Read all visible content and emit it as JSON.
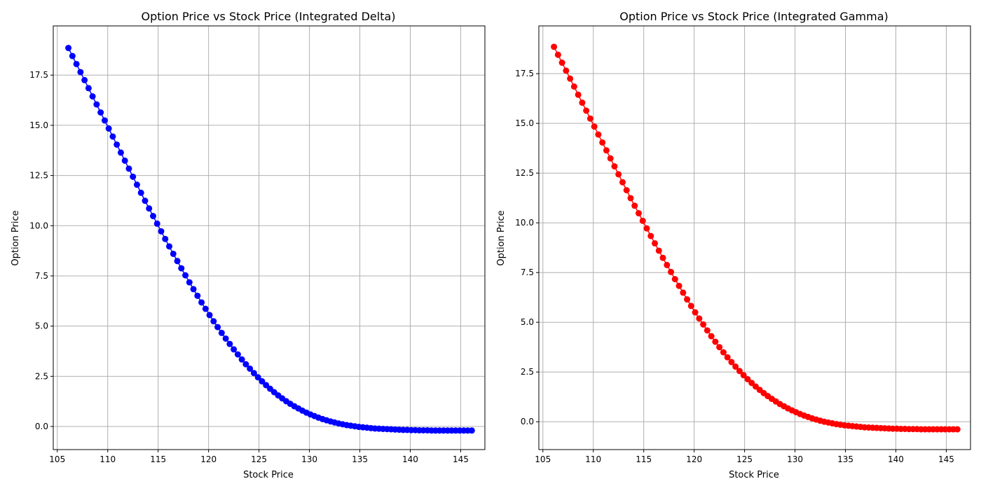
{
  "chart_data": [
    {
      "type": "line",
      "marker": "circle",
      "title": "Option Price vs Stock Price (Integrated Delta)",
      "xlabel": "Stock Price",
      "ylabel": "Option Price",
      "xlim": [
        104.6,
        147.4
      ],
      "ylim": [
        -1.15,
        19.95
      ],
      "xticks": [
        "105",
        "110",
        "115",
        "120",
        "125",
        "130",
        "135",
        "140",
        "145"
      ],
      "yticks": [
        "0.0",
        "2.5",
        "5.0",
        "7.5",
        "10.0",
        "12.5",
        "15.0",
        "17.5"
      ],
      "grid": true,
      "color": "#0000ff",
      "x": [
        106.1,
        106.5,
        106.9,
        107.3,
        107.7,
        108.1,
        108.5,
        108.9,
        109.3,
        109.7,
        110.1,
        110.5,
        110.9,
        111.3,
        111.7,
        112.1,
        112.5,
        112.9,
        113.3,
        113.7,
        114.1,
        114.5,
        114.9,
        115.3,
        115.7,
        116.1,
        116.5,
        116.9,
        117.3,
        117.7,
        118.1,
        118.5,
        118.9,
        119.3,
        119.7,
        120.1,
        120.5,
        120.9,
        121.3,
        121.7,
        122.1,
        122.5,
        122.9,
        123.3,
        123.7,
        124.1,
        124.5,
        124.9,
        125.3,
        125.7,
        126.1,
        126.5,
        126.9,
        127.3,
        127.7,
        128.1,
        128.5,
        128.9,
        129.3,
        129.7,
        130.1,
        130.5,
        130.9,
        131.3,
        131.7,
        132.1,
        132.5,
        132.9,
        133.3,
        133.7,
        134.1,
        134.5,
        134.9,
        135.3,
        135.7,
        136.1,
        136.5,
        136.9,
        137.3,
        137.7,
        138.1,
        138.5,
        138.9,
        139.3,
        139.7,
        140.1,
        140.5,
        140.9,
        141.3,
        141.7,
        142.1,
        142.5,
        142.9,
        143.3,
        143.7,
        144.1,
        144.5,
        144.9,
        145.3,
        145.7,
        146.1
      ],
      "y": [
        18.85,
        18.45,
        18.05,
        17.65,
        17.25,
        16.85,
        16.44,
        16.04,
        15.64,
        15.24,
        14.84,
        14.44,
        14.04,
        13.64,
        13.24,
        12.84,
        12.44,
        12.04,
        11.64,
        11.24,
        10.86,
        10.48,
        10.1,
        9.72,
        9.34,
        8.97,
        8.6,
        8.24,
        7.88,
        7.53,
        7.18,
        6.84,
        6.51,
        6.18,
        5.86,
        5.55,
        5.24,
        4.95,
        4.66,
        4.38,
        4.11,
        3.84,
        3.59,
        3.34,
        3.1,
        2.88,
        2.66,
        2.45,
        2.25,
        2.06,
        1.88,
        1.71,
        1.55,
        1.4,
        1.26,
        1.13,
        1.01,
        0.9,
        0.79,
        0.69,
        0.6,
        0.52,
        0.44,
        0.37,
        0.31,
        0.25,
        0.2,
        0.15,
        0.11,
        0.07,
        0.04,
        0.01,
        -0.02,
        -0.04,
        -0.06,
        -0.08,
        -0.1,
        -0.11,
        -0.12,
        -0.13,
        -0.14,
        -0.15,
        -0.16,
        -0.17,
        -0.17,
        -0.18,
        -0.18,
        -0.19,
        -0.19,
        -0.19,
        -0.2,
        -0.2,
        -0.2,
        -0.2,
        -0.2,
        -0.2,
        -0.2,
        -0.2,
        -0.2,
        -0.2,
        -0.2
      ]
    },
    {
      "type": "line",
      "marker": "circle",
      "title": "Option Price vs Stock Price (Integrated Gamma)",
      "xlabel": "Stock Price",
      "ylabel": "Option Price",
      "xlim": [
        104.6,
        147.4
      ],
      "ylim": [
        -1.4,
        19.9
      ],
      "xticks": [
        "105",
        "110",
        "115",
        "120",
        "125",
        "130",
        "135",
        "140",
        "145"
      ],
      "yticks": [
        "0.0",
        "2.5",
        "5.0",
        "7.5",
        "10.0",
        "12.5",
        "15.0",
        "17.5"
      ],
      "grid": true,
      "color": "#ff0000",
      "x": [
        106.1,
        106.5,
        106.9,
        107.3,
        107.7,
        108.1,
        108.5,
        108.9,
        109.3,
        109.7,
        110.1,
        110.5,
        110.9,
        111.3,
        111.7,
        112.1,
        112.5,
        112.9,
        113.3,
        113.7,
        114.1,
        114.5,
        114.9,
        115.3,
        115.7,
        116.1,
        116.5,
        116.9,
        117.3,
        117.7,
        118.1,
        118.5,
        118.9,
        119.3,
        119.7,
        120.1,
        120.5,
        120.9,
        121.3,
        121.7,
        122.1,
        122.5,
        122.9,
        123.3,
        123.7,
        124.1,
        124.5,
        124.9,
        125.3,
        125.7,
        126.1,
        126.5,
        126.9,
        127.3,
        127.7,
        128.1,
        128.5,
        128.9,
        129.3,
        129.7,
        130.1,
        130.5,
        130.9,
        131.3,
        131.7,
        132.1,
        132.5,
        132.9,
        133.3,
        133.7,
        134.1,
        134.5,
        134.9,
        135.3,
        135.7,
        136.1,
        136.5,
        136.9,
        137.3,
        137.7,
        138.1,
        138.5,
        138.9,
        139.3,
        139.7,
        140.1,
        140.5,
        140.9,
        141.3,
        141.7,
        142.1,
        142.5,
        142.9,
        143.3,
        143.7,
        144.1,
        144.5,
        144.9,
        145.3,
        145.7,
        146.1
      ],
      "y": [
        18.85,
        18.45,
        18.05,
        17.65,
        17.25,
        16.85,
        16.44,
        16.04,
        15.64,
        15.24,
        14.84,
        14.44,
        14.04,
        13.64,
        13.24,
        12.84,
        12.44,
        12.04,
        11.64,
        11.24,
        10.86,
        10.48,
        10.1,
        9.72,
        9.34,
        8.97,
        8.6,
        8.24,
        7.88,
        7.53,
        7.17,
        6.83,
        6.49,
        6.15,
        5.82,
        5.5,
        5.19,
        4.89,
        4.59,
        4.3,
        4.02,
        3.75,
        3.49,
        3.24,
        3.0,
        2.77,
        2.55,
        2.34,
        2.14,
        1.95,
        1.77,
        1.6,
        1.44,
        1.29,
        1.15,
        1.02,
        0.89,
        0.78,
        0.67,
        0.57,
        0.48,
        0.39,
        0.31,
        0.24,
        0.17,
        0.11,
        0.05,
        0.0,
        -0.04,
        -0.08,
        -0.12,
        -0.15,
        -0.18,
        -0.2,
        -0.22,
        -0.24,
        -0.26,
        -0.28,
        -0.29,
        -0.3,
        -0.31,
        -0.32,
        -0.33,
        -0.34,
        -0.35,
        -0.35,
        -0.36,
        -0.36,
        -0.37,
        -0.37,
        -0.37,
        -0.38,
        -0.38,
        -0.38,
        -0.38,
        -0.38,
        -0.38,
        -0.38,
        -0.38,
        -0.38,
        -0.38
      ]
    }
  ]
}
